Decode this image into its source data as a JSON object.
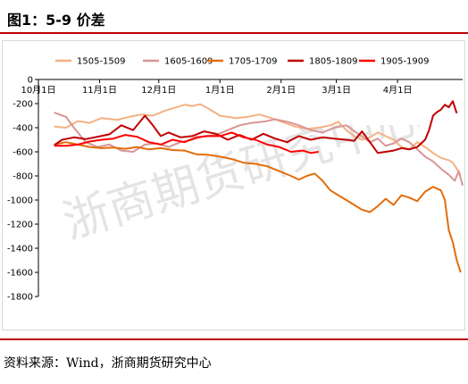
{
  "title": "图1：5-9 价差",
  "source": "资料来源：Wind，浙商期货研究中心",
  "watermark": "浙商期货研究中心",
  "chart_data": {
    "type": "line",
    "ylim": [
      -1800,
      0
    ],
    "yticks": [
      0,
      -200,
      -400,
      -600,
      -800,
      -1000,
      -1200,
      -1400,
      -1600,
      -1800
    ],
    "xticks": [
      "10月1日",
      "11月1日",
      "12月1日",
      "1月1日",
      "2月1日",
      "3月1日",
      "4月1日"
    ],
    "x_range_days": [
      0,
      215
    ],
    "xtick_days": [
      0,
      31,
      61,
      92,
      123,
      151,
      182
    ],
    "grid": false,
    "legend_position": "top",
    "series": [
      {
        "name": "1505-1509",
        "color": "#f4b183",
        "points": [
          [
            8,
            -390
          ],
          [
            14,
            -400
          ],
          [
            20,
            -345
          ],
          [
            26,
            -360
          ],
          [
            32,
            -320
          ],
          [
            40,
            -335
          ],
          [
            46,
            -310
          ],
          [
            52,
            -290
          ],
          [
            58,
            -300
          ],
          [
            64,
            -260
          ],
          [
            70,
            -230
          ],
          [
            74,
            -210
          ],
          [
            78,
            -220
          ],
          [
            82,
            -205
          ],
          [
            86,
            -240
          ],
          [
            92,
            -300
          ],
          [
            100,
            -320
          ],
          [
            106,
            -310
          ],
          [
            112,
            -290
          ],
          [
            118,
            -320
          ],
          [
            124,
            -355
          ],
          [
            130,
            -390
          ],
          [
            136,
            -410
          ],
          [
            142,
            -400
          ],
          [
            148,
            -380
          ],
          [
            152,
            -350
          ],
          [
            156,
            -420
          ],
          [
            160,
            -470
          ],
          [
            164,
            -500
          ],
          [
            168,
            -480
          ],
          [
            172,
            -440
          ],
          [
            176,
            -470
          ],
          [
            180,
            -500
          ],
          [
            184,
            -560
          ],
          [
            188,
            -580
          ],
          [
            192,
            -520
          ],
          [
            196,
            -560
          ],
          [
            200,
            -610
          ],
          [
            204,
            -650
          ],
          [
            208,
            -670
          ],
          [
            210,
            -690
          ],
          [
            212,
            -740
          ],
          [
            214,
            -800
          ]
        ]
      },
      {
        "name": "1605-1609",
        "color": "#d99594",
        "points": [
          [
            8,
            -275
          ],
          [
            14,
            -310
          ],
          [
            18,
            -400
          ],
          [
            24,
            -520
          ],
          [
            30,
            -560
          ],
          [
            36,
            -540
          ],
          [
            42,
            -590
          ],
          [
            48,
            -600
          ],
          [
            54,
            -540
          ],
          [
            60,
            -530
          ],
          [
            66,
            -560
          ],
          [
            72,
            -520
          ],
          [
            78,
            -500
          ],
          [
            84,
            -470
          ],
          [
            90,
            -460
          ],
          [
            96,
            -420
          ],
          [
            102,
            -380
          ],
          [
            108,
            -360
          ],
          [
            114,
            -350
          ],
          [
            120,
            -330
          ],
          [
            126,
            -350
          ],
          [
            132,
            -380
          ],
          [
            138,
            -420
          ],
          [
            144,
            -440
          ],
          [
            150,
            -400
          ],
          [
            156,
            -380
          ],
          [
            162,
            -450
          ],
          [
            168,
            -520
          ],
          [
            172,
            -490
          ],
          [
            176,
            -550
          ],
          [
            180,
            -530
          ],
          [
            184,
            -490
          ],
          [
            188,
            -520
          ],
          [
            192,
            -580
          ],
          [
            196,
            -640
          ],
          [
            200,
            -680
          ],
          [
            204,
            -740
          ],
          [
            208,
            -790
          ],
          [
            211,
            -840
          ],
          [
            213,
            -760
          ],
          [
            215,
            -880
          ]
        ]
      },
      {
        "name": "1705-1709",
        "color": "#e46c0a",
        "points": [
          [
            8,
            -540
          ],
          [
            14,
            -520
          ],
          [
            20,
            -540
          ],
          [
            26,
            -560
          ],
          [
            32,
            -570
          ],
          [
            38,
            -565
          ],
          [
            44,
            -575
          ],
          [
            50,
            -560
          ],
          [
            56,
            -580
          ],
          [
            62,
            -570
          ],
          [
            68,
            -585
          ],
          [
            74,
            -590
          ],
          [
            80,
            -620
          ],
          [
            86,
            -625
          ],
          [
            92,
            -640
          ],
          [
            98,
            -660
          ],
          [
            104,
            -690
          ],
          [
            110,
            -700
          ],
          [
            116,
            -720
          ],
          [
            122,
            -760
          ],
          [
            128,
            -800
          ],
          [
            132,
            -830
          ],
          [
            136,
            -800
          ],
          [
            140,
            -780
          ],
          [
            144,
            -840
          ],
          [
            148,
            -920
          ],
          [
            152,
            -960
          ],
          [
            156,
            -1000
          ],
          [
            160,
            -1040
          ],
          [
            164,
            -1080
          ],
          [
            168,
            -1100
          ],
          [
            172,
            -1050
          ],
          [
            176,
            -990
          ],
          [
            180,
            -1040
          ],
          [
            184,
            -960
          ],
          [
            188,
            -980
          ],
          [
            192,
            -1010
          ],
          [
            196,
            -930
          ],
          [
            200,
            -890
          ],
          [
            204,
            -920
          ],
          [
            206,
            -1000
          ],
          [
            208,
            -1250
          ],
          [
            210,
            -1350
          ],
          [
            212,
            -1500
          ],
          [
            214,
            -1600
          ]
        ]
      },
      {
        "name": "1805-1809",
        "color": "#c00000",
        "points": [
          [
            8,
            -545
          ],
          [
            12,
            -500
          ],
          [
            18,
            -480
          ],
          [
            24,
            -495
          ],
          [
            30,
            -475
          ],
          [
            36,
            -455
          ],
          [
            42,
            -380
          ],
          [
            48,
            -420
          ],
          [
            54,
            -300
          ],
          [
            58,
            -380
          ],
          [
            62,
            -470
          ],
          [
            66,
            -440
          ],
          [
            72,
            -480
          ],
          [
            78,
            -470
          ],
          [
            84,
            -430
          ],
          [
            90,
            -450
          ],
          [
            96,
            -500
          ],
          [
            102,
            -460
          ],
          [
            108,
            -500
          ],
          [
            114,
            -450
          ],
          [
            120,
            -490
          ],
          [
            126,
            -520
          ],
          [
            132,
            -470
          ],
          [
            138,
            -500
          ],
          [
            144,
            -480
          ],
          [
            150,
            -490
          ],
          [
            156,
            -500
          ],
          [
            160,
            -510
          ],
          [
            164,
            -430
          ],
          [
            168,
            -520
          ],
          [
            172,
            -610
          ],
          [
            176,
            -600
          ],
          [
            180,
            -590
          ],
          [
            184,
            -570
          ],
          [
            188,
            -580
          ],
          [
            192,
            -560
          ],
          [
            196,
            -500
          ],
          [
            198,
            -420
          ],
          [
            200,
            -300
          ],
          [
            202,
            -270
          ],
          [
            204,
            -250
          ],
          [
            206,
            -210
          ],
          [
            208,
            -230
          ],
          [
            210,
            -180
          ],
          [
            212,
            -280
          ]
        ]
      },
      {
        "name": "1905-1909",
        "color": "#ff0000",
        "points": [
          [
            8,
            -550
          ],
          [
            14,
            -550
          ],
          [
            20,
            -540
          ],
          [
            26,
            -515
          ],
          [
            32,
            -500
          ],
          [
            38,
            -490
          ],
          [
            44,
            -460
          ],
          [
            50,
            -475
          ],
          [
            56,
            -520
          ],
          [
            62,
            -540
          ],
          [
            68,
            -500
          ],
          [
            74,
            -520
          ],
          [
            80,
            -480
          ],
          [
            86,
            -470
          ],
          [
            92,
            -470
          ],
          [
            98,
            -440
          ],
          [
            104,
            -480
          ],
          [
            110,
            -500
          ],
          [
            116,
            -540
          ],
          [
            122,
            -560
          ],
          [
            128,
            -600
          ],
          [
            134,
            -590
          ],
          [
            138,
            -610
          ],
          [
            142,
            -600
          ]
        ]
      }
    ]
  }
}
